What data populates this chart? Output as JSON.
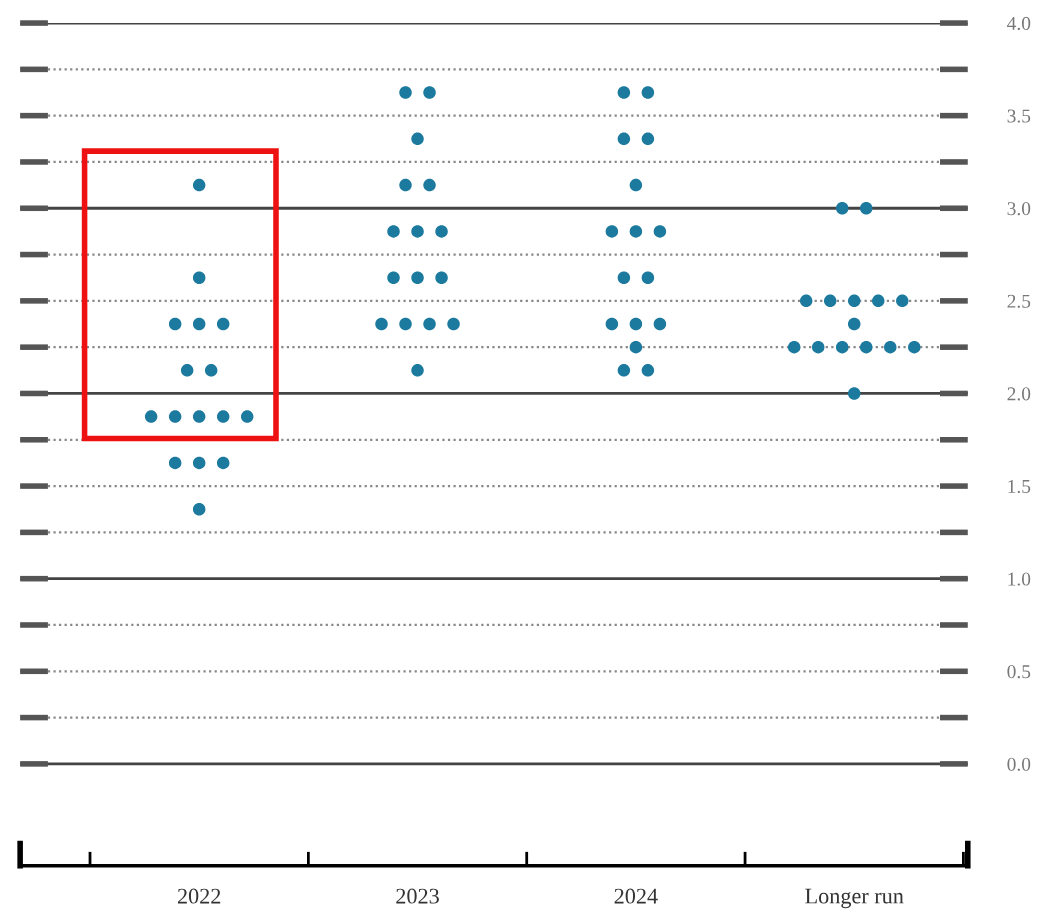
{
  "chart_data": {
    "type": "scatter",
    "categories": [
      "2022",
      "2023",
      "2024",
      "Longer run"
    ],
    "series": [
      {
        "color": "#1b7a9e",
        "values": [
          3.125,
          3.625,
          3.625,
          3.0
        ]
      },
      {
        "color": "#1b7a9e",
        "values": [
          2.625,
          3.625,
          3.625,
          3.0
        ]
      },
      {
        "color": "#1b7a9e",
        "values": [
          2.375,
          3.375,
          3.375,
          2.5
        ]
      },
      {
        "color": "#1b7a9e",
        "values": [
          2.375,
          3.125,
          3.375,
          2.5
        ]
      },
      {
        "color": "#1b7a9e",
        "values": [
          2.375,
          3.125,
          3.125,
          2.5
        ]
      },
      {
        "color": "#1b7a9e",
        "values": [
          2.125,
          2.875,
          2.875,
          2.5
        ]
      },
      {
        "color": "#1b7a9e",
        "values": [
          2.125,
          2.875,
          2.875,
          2.5
        ]
      },
      {
        "color": "#1b7a9e",
        "values": [
          1.875,
          2.875,
          2.875,
          2.375
        ]
      },
      {
        "color": "#1b7a9e",
        "values": [
          1.875,
          2.625,
          2.625,
          2.25
        ]
      },
      {
        "color": "#1b7a9e",
        "values": [
          1.875,
          2.625,
          2.625,
          2.25
        ]
      },
      {
        "color": "#1b7a9e",
        "values": [
          1.875,
          2.625,
          2.375,
          2.25
        ]
      },
      {
        "color": "#1b7a9e",
        "values": [
          1.875,
          2.375,
          2.375,
          2.25
        ]
      },
      {
        "color": "#1b7a9e",
        "values": [
          1.625,
          2.375,
          2.375,
          2.25
        ]
      },
      {
        "color": "#1b7a9e",
        "values": [
          1.625,
          2.375,
          2.25,
          2.25
        ]
      },
      {
        "color": "#1b7a9e",
        "values": [
          1.625,
          2.375,
          2.125,
          2.0
        ]
      },
      {
        "color": "#1b7a9e",
        "values": [
          1.375,
          2.125,
          2.125,
          null
        ]
      }
    ],
    "ylim": [
      -0.55,
      4.0
    ],
    "yticks": [
      {
        "value": 0.0,
        "label": "0.0"
      },
      {
        "value": 0.25,
        "label": null
      },
      {
        "value": 0.5,
        "label": "0.5"
      },
      {
        "value": 0.75,
        "label": null
      },
      {
        "value": 1.0,
        "label": "1.0"
      },
      {
        "value": 1.25,
        "label": null
      },
      {
        "value": 1.5,
        "label": "1.5"
      },
      {
        "value": 1.75,
        "label": null
      },
      {
        "value": 2.0,
        "label": "2.0"
      },
      {
        "value": 2.25,
        "label": null
      },
      {
        "value": 2.5,
        "label": "2.5"
      },
      {
        "value": 2.75,
        "label": null
      },
      {
        "value": 3.0,
        "label": "3.0"
      },
      {
        "value": 3.25,
        "label": null
      },
      {
        "value": 3.5,
        "label": "3.5"
      },
      {
        "value": 3.75,
        "label": null
      },
      {
        "value": 4.0,
        "label": "4.0"
      }
    ],
    "grid": "y",
    "marker": "circle"
  }
}
